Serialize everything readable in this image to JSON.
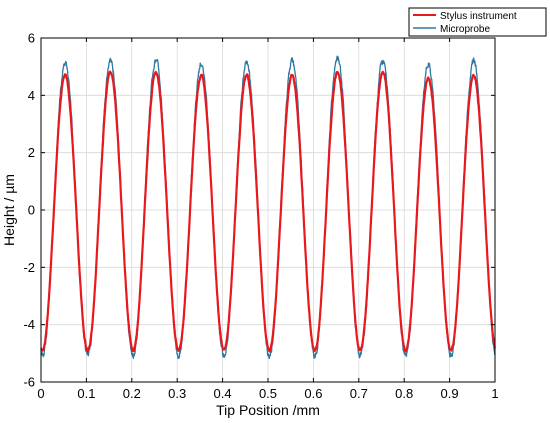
{
  "chart_data": {
    "type": "line",
    "xlabel": "Tip Position /mm",
    "ylabel": "Height / µm",
    "xlim": [
      0,
      1
    ],
    "ylim": [
      -6,
      6
    ],
    "x_ticks": [
      0,
      0.1,
      0.2,
      0.3,
      0.4,
      0.5,
      0.6,
      0.7,
      0.8,
      0.9,
      1
    ],
    "x_tick_labels": [
      "0",
      "0.1",
      "0.2",
      "0.3",
      "0.4",
      "0.5",
      "0.6",
      "0.7",
      "0.8",
      "0.9",
      "1"
    ],
    "y_ticks": [
      -6,
      -4,
      -2,
      0,
      2,
      4,
      6
    ],
    "y_tick_labels": [
      "-6",
      "-4",
      "-2",
      "0",
      "2",
      "4",
      "6"
    ],
    "grid": true,
    "legend_position": "top-right, outside plot area",
    "series": [
      {
        "name": "Stylus instrument",
        "color": "#e8191d",
        "waveform": "sinusoid",
        "period_mm": 0.1,
        "first_peak_x": 0.053,
        "amplitude": 4.85,
        "offset": -0.1,
        "peak_values": [
          4.7,
          4.8,
          4.8,
          4.7,
          4.7,
          4.7,
          4.8,
          4.8,
          4.6,
          4.7
        ],
        "trough_values": [
          -4.9,
          -4.9,
          -4.9,
          -4.9,
          -4.9,
          -4.9,
          -4.9,
          -4.9,
          -4.9,
          -4.9
        ]
      },
      {
        "name": "Microprobe",
        "color": "#2f78a0",
        "waveform": "sinusoid",
        "period_mm": 0.1,
        "first_peak_x": 0.053,
        "amplitude": 5.15,
        "offset": 0.0,
        "peak_values": [
          5.1,
          5.2,
          5.2,
          5.1,
          5.1,
          5.2,
          5.3,
          5.2,
          5.1,
          5.2
        ],
        "trough_values": [
          -5.1,
          -5.1,
          -5.1,
          -5.1,
          -5.1,
          -5.1,
          -5.1,
          -5.1,
          -5.1,
          -5.1
        ]
      }
    ]
  }
}
